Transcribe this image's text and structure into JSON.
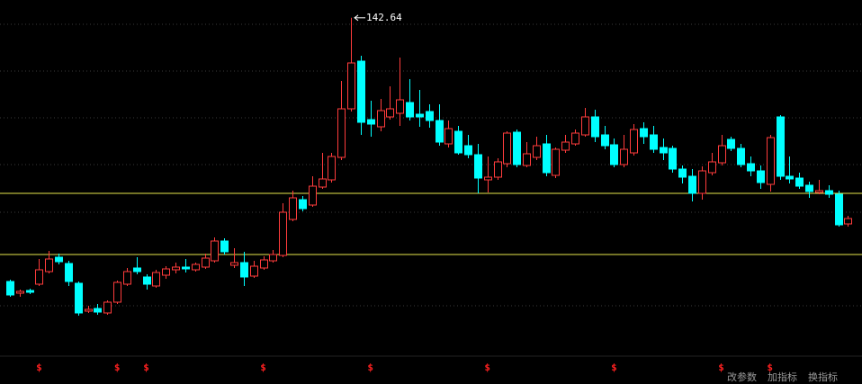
{
  "chart_data": {
    "type": "candlestick",
    "ylim": [
      66,
      146
    ],
    "up_color": "#ff3c3c",
    "down_color": "#00ffff",
    "level_color": "#e6e64d",
    "open": [
      84.0,
      81.4,
      82.0,
      83.4,
      86.2,
      89.4,
      88.0,
      83.6,
      77.4,
      78.0,
      77.0,
      79.4,
      83.4,
      87.0,
      85.0,
      83.0,
      85.4,
      86.6,
      87.2,
      86.6,
      87.2,
      88.6,
      93.0,
      87.6,
      88.2,
      85.2,
      87.0,
      88.6,
      89.8,
      97.8,
      102.2,
      101.0,
      105.0,
      106.6,
      111.6,
      122.4,
      133.0,
      120.0,
      118.4,
      120.6,
      121.4,
      123.8,
      121.2,
      121.8,
      119.8,
      114.6,
      117.4,
      114.2,
      112.2,
      106.6,
      107.2,
      110.2,
      117.2,
      109.8,
      111.6,
      114.6,
      107.6,
      113.2,
      114.6,
      116.6,
      120.6,
      116.6,
      114.4,
      110.0,
      112.6,
      118.0,
      116.6,
      113.8,
      113.6,
      109.0,
      107.4,
      103.6,
      108.2,
      110.4,
      115.6,
      113.6,
      110.2,
      108.6,
      105.6,
      120.6,
      107.4,
      107.0,
      105.4,
      103.8,
      104.2,
      103.4,
      96.8
    ],
    "high": [
      84.4,
      82.2,
      82.4,
      89.0,
      90.8,
      90.2,
      88.6,
      84.0,
      78.6,
      79.0,
      79.8,
      84.2,
      87.0,
      89.4,
      85.6,
      86.6,
      87.4,
      88.2,
      89.0,
      88.2,
      90.2,
      93.8,
      93.6,
      91.4,
      90.6,
      88.6,
      89.6,
      91.0,
      101.4,
      104.2,
      103.0,
      107.4,
      112.6,
      112.6,
      128.6,
      142.64,
      134.2,
      124.2,
      124.6,
      127.4,
      133.8,
      129.0,
      126.6,
      123.4,
      123.4,
      119.8,
      118.6,
      116.6,
      114.6,
      111.8,
      111.4,
      117.4,
      117.8,
      115.0,
      116.2,
      116.6,
      113.8,
      116.6,
      117.8,
      122.6,
      122.2,
      118.6,
      115.8,
      116.6,
      119.0,
      119.4,
      118.6,
      115.8,
      114.2,
      109.8,
      109.0,
      109.6,
      112.6,
      116.6,
      116.2,
      114.6,
      111.8,
      109.8,
      116.6,
      121.0,
      111.8,
      108.2,
      106.2,
      106.6,
      105.4,
      104.2,
      98.6
    ],
    "low": [
      80.6,
      80.6,
      81.2,
      83.0,
      85.8,
      87.8,
      83.0,
      76.4,
      77.0,
      76.6,
      76.6,
      79.0,
      83.0,
      85.6,
      82.2,
      82.6,
      84.6,
      85.8,
      86.0,
      86.2,
      86.8,
      88.2,
      90.0,
      87.0,
      83.0,
      84.8,
      86.6,
      88.2,
      89.4,
      97.4,
      99.6,
      100.6,
      104.6,
      106.0,
      111.0,
      121.8,
      116.6,
      116.2,
      117.4,
      120.0,
      118.6,
      119.8,
      118.4,
      118.2,
      114.2,
      113.8,
      112.2,
      111.4,
      103.6,
      103.8,
      106.6,
      109.4,
      109.4,
      109.4,
      111.0,
      107.4,
      107.0,
      112.6,
      114.2,
      116.2,
      115.0,
      113.4,
      109.4,
      109.4,
      112.0,
      114.6,
      112.6,
      111.0,
      108.2,
      105.8,
      101.8,
      102.2,
      107.6,
      109.8,
      113.0,
      109.4,
      107.4,
      104.6,
      104.0,
      106.6,
      105.8,
      104.6,
      102.6,
      103.4,
      102.6,
      96.2,
      96.2
    ],
    "close": [
      81.0,
      81.8,
      81.6,
      86.6,
      89.0,
      88.4,
      84.0,
      77.0,
      77.8,
      77.2,
      79.4,
      83.8,
      86.2,
      86.2,
      83.4,
      86.0,
      86.8,
      87.2,
      86.8,
      87.8,
      89.2,
      93.0,
      90.6,
      88.2,
      85.0,
      87.4,
      88.8,
      90.0,
      99.4,
      102.6,
      100.2,
      105.2,
      106.8,
      111.8,
      122.4,
      132.6,
      119.4,
      119.0,
      122.0,
      122.4,
      124.4,
      120.6,
      120.6,
      119.8,
      115.0,
      118.0,
      112.6,
      112.2,
      107.0,
      107.2,
      110.6,
      117.0,
      110.0,
      112.4,
      114.2,
      108.2,
      113.4,
      115.0,
      117.0,
      120.6,
      116.2,
      114.2,
      110.0,
      113.4,
      117.8,
      116.2,
      113.4,
      112.6,
      109.0,
      107.2,
      103.6,
      108.6,
      110.6,
      114.2,
      113.6,
      110.0,
      108.6,
      106.0,
      116.0,
      107.4,
      106.8,
      105.2,
      104.0,
      104.2,
      103.4,
      96.6,
      98.0
    ],
    "levels": [
      103.6,
      90.0
    ],
    "signals": [
      null,
      null,
      null,
      "$",
      null,
      null,
      null,
      null,
      null,
      null,
      null,
      "$",
      null,
      null,
      "$",
      null,
      null,
      null,
      null,
      null,
      null,
      null,
      null,
      null,
      null,
      null,
      "$",
      null,
      null,
      null,
      null,
      null,
      null,
      null,
      null,
      null,
      null,
      "$",
      null,
      null,
      null,
      null,
      null,
      null,
      null,
      null,
      null,
      null,
      null,
      "$",
      null,
      null,
      null,
      null,
      null,
      null,
      null,
      null,
      null,
      null,
      null,
      null,
      "$",
      null,
      null,
      null,
      null,
      null,
      null,
      null,
      null,
      null,
      null,
      "$",
      null,
      null,
      null,
      null,
      "$",
      null,
      null,
      null,
      null,
      null,
      null,
      null,
      null
    ],
    "toolbar": [
      "改参数",
      "加指标",
      "换指标"
    ]
  }
}
